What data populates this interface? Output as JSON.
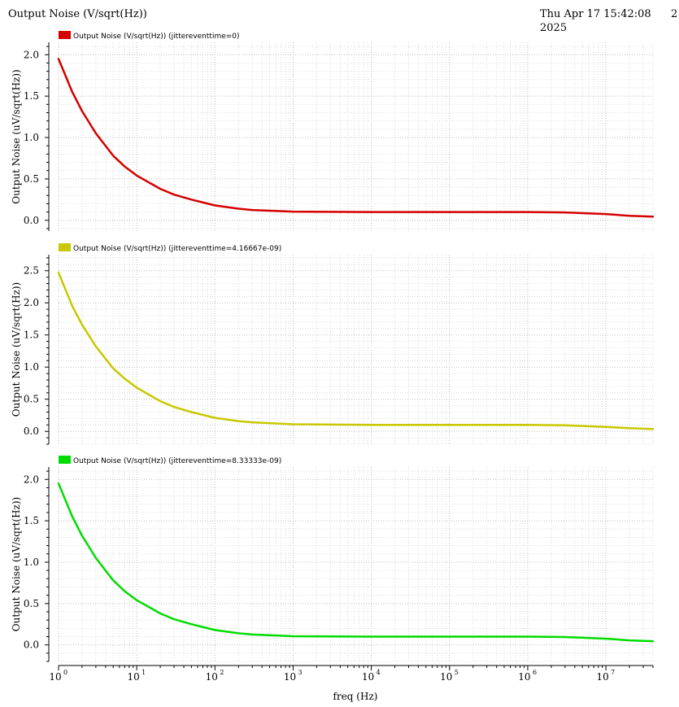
{
  "header": {
    "title": "Output Noise (V/sqrt(Hz))",
    "date_line1": "Thu Apr 17 15:42:08",
    "date_line2": "2025",
    "page_number": "2"
  },
  "chart_data": [
    {
      "type": "line",
      "legend": "Output Noise (V/sqrt(Hz)) (jittereventtime=0)",
      "color": "#d40000",
      "ylabel": "Output Noise (uV/sqrt(Hz))",
      "xscale": "log",
      "xlim": [
        1,
        40000000
      ],
      "ylim": [
        -0.13,
        2.15
      ],
      "yticks": [
        "0.0",
        "0.5",
        "1.0",
        "1.5",
        "2.0"
      ],
      "grid": true,
      "x": [
        1,
        1.5,
        2,
        3,
        5,
        7,
        10,
        20,
        30,
        50,
        100,
        200,
        300,
        1000,
        10000,
        100000,
        1000000,
        3000000,
        10000000,
        20000000,
        40000000
      ],
      "y": [
        1.95,
        1.55,
        1.32,
        1.05,
        0.78,
        0.65,
        0.54,
        0.38,
        0.31,
        0.25,
        0.18,
        0.14,
        0.125,
        0.105,
        0.1,
        0.1,
        0.1,
        0.095,
        0.075,
        0.055,
        0.045
      ]
    },
    {
      "type": "line",
      "legend": "Output Noise (V/sqrt(Hz)) (jittereventtime=4.16667e-09)",
      "color": "#c8c800",
      "ylabel": "Output Noise (uV/sqrt(Hz))",
      "xscale": "log",
      "xlim": [
        1,
        40000000
      ],
      "ylim": [
        -0.2,
        2.75
      ],
      "yticks": [
        "0.0",
        "0.5",
        "1.0",
        "1.5",
        "2.0",
        "2.5"
      ],
      "grid": true,
      "x": [
        1,
        1.5,
        2,
        3,
        5,
        7,
        10,
        20,
        30,
        50,
        100,
        200,
        300,
        1000,
        10000,
        100000,
        1000000,
        3000000,
        10000000,
        20000000,
        40000000
      ],
      "y": [
        2.47,
        1.95,
        1.66,
        1.32,
        0.98,
        0.82,
        0.68,
        0.47,
        0.38,
        0.3,
        0.21,
        0.16,
        0.14,
        0.11,
        0.1,
        0.1,
        0.1,
        0.095,
        0.07,
        0.05,
        0.035
      ]
    },
    {
      "type": "line",
      "legend": "Output Noise (V/sqrt(Hz)) (jittereventtime=8.33333e-09)",
      "color": "#00dc00",
      "ylabel": "Output Noise (uV/sqrt(Hz))",
      "xlabel": "freq (Hz)",
      "xscale": "log",
      "xlim": [
        1,
        40000000
      ],
      "ylim": [
        -0.2,
        2.15
      ],
      "yticks": [
        "0.0",
        "0.5",
        "1.0",
        "1.5",
        "2.0"
      ],
      "xticks": [
        "10^0",
        "10^1",
        "10^2",
        "10^3",
        "10^4",
        "10^5",
        "10^6",
        "10^7"
      ],
      "grid": true,
      "x": [
        1,
        1.5,
        2,
        3,
        5,
        7,
        10,
        20,
        30,
        50,
        100,
        200,
        300,
        1000,
        10000,
        100000,
        1000000,
        3000000,
        10000000,
        20000000,
        40000000
      ],
      "y": [
        1.95,
        1.55,
        1.32,
        1.05,
        0.78,
        0.65,
        0.54,
        0.38,
        0.31,
        0.25,
        0.18,
        0.14,
        0.125,
        0.105,
        0.1,
        0.1,
        0.1,
        0.095,
        0.075,
        0.055,
        0.045
      ]
    }
  ]
}
